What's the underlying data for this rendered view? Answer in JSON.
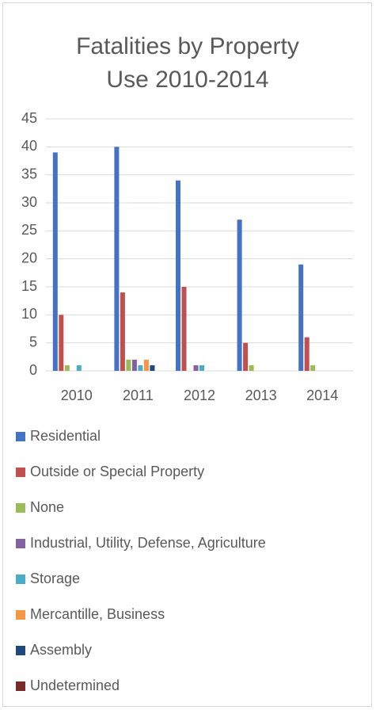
{
  "chart_data": {
    "type": "bar",
    "title": "Fatalities by Property Use 2010-2014",
    "categories": [
      "2010",
      "2011",
      "2012",
      "2013",
      "2014"
    ],
    "series": [
      {
        "name": "Residential",
        "color": "#4472c4",
        "values": [
          39,
          40,
          34,
          27,
          19
        ]
      },
      {
        "name": "Outside or Special Property",
        "color": "#c0504d",
        "values": [
          10,
          14,
          15,
          5,
          6
        ]
      },
      {
        "name": "None",
        "color": "#9bbb59",
        "values": [
          1,
          2,
          0,
          1,
          1
        ]
      },
      {
        "name": "Industrial, Utility, Defense, Agriculture",
        "color": "#8064a2",
        "values": [
          0,
          2,
          1,
          0,
          0
        ]
      },
      {
        "name": "Storage",
        "color": "#4bacc6",
        "values": [
          1,
          1,
          1,
          0,
          0
        ]
      },
      {
        "name": "Mercantille, Business",
        "color": "#f79646",
        "values": [
          0,
          2,
          0,
          0,
          0
        ]
      },
      {
        "name": "Assembly",
        "color": "#1f497d",
        "values": [
          0,
          1,
          0,
          0,
          0
        ]
      },
      {
        "name": "Undetermined",
        "color": "#772c2a",
        "values": [
          0,
          0,
          0,
          0,
          0
        ]
      }
    ],
    "ylim": [
      0,
      45
    ],
    "yticks": [
      0,
      5,
      10,
      15,
      20,
      25,
      30,
      35,
      40,
      45
    ],
    "grid": true,
    "legend": "bottom"
  }
}
